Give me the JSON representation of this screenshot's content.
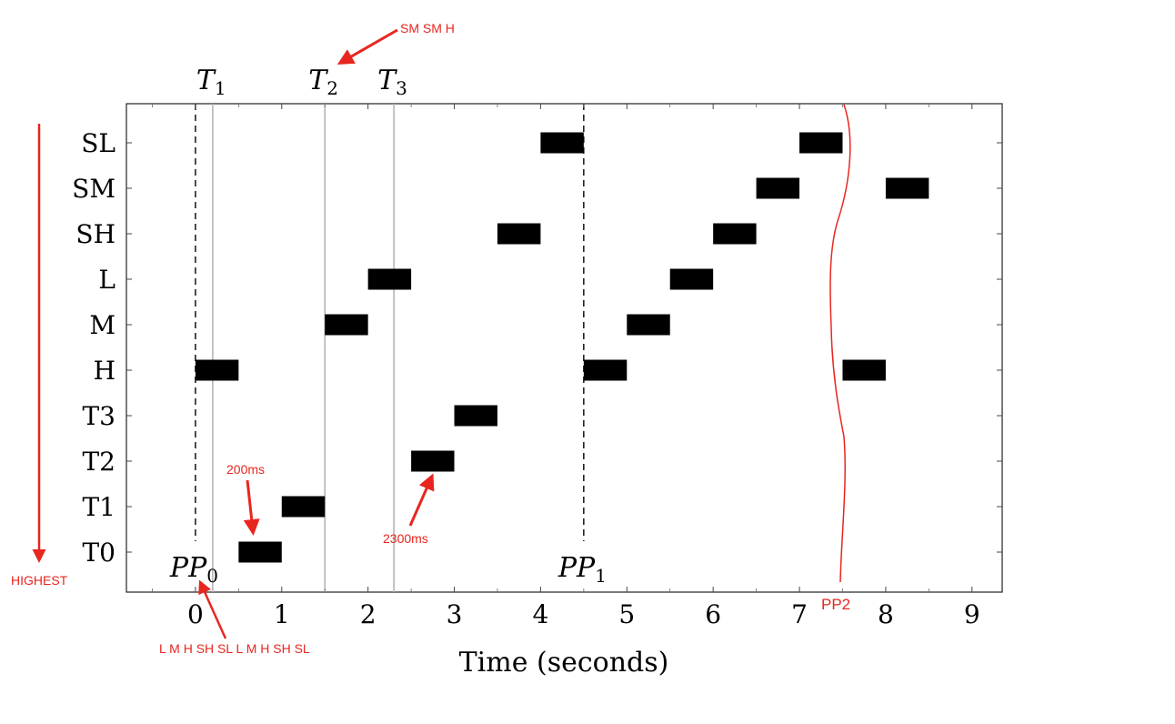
{
  "chart_data": {
    "type": "gantt",
    "xlabel": "Time (seconds)",
    "x_ticks": [
      0,
      1,
      2,
      3,
      4,
      5,
      6,
      7,
      8,
      9
    ],
    "xlim": [
      -0.8,
      9.35
    ],
    "categories": [
      "T0",
      "T1",
      "T2",
      "T3",
      "H",
      "M",
      "L",
      "SH",
      "SM",
      "SL"
    ],
    "bars": [
      {
        "row": "H",
        "start": 0.0,
        "end": 0.5
      },
      {
        "row": "T0",
        "start": 0.5,
        "end": 1.0
      },
      {
        "row": "T1",
        "start": 1.0,
        "end": 1.5
      },
      {
        "row": "M",
        "start": 1.5,
        "end": 2.0
      },
      {
        "row": "L",
        "start": 2.0,
        "end": 2.5
      },
      {
        "row": "T2",
        "start": 2.5,
        "end": 3.0
      },
      {
        "row": "T3",
        "start": 3.0,
        "end": 3.5
      },
      {
        "row": "SH",
        "start": 3.5,
        "end": 4.0
      },
      {
        "row": "SL",
        "start": 4.0,
        "end": 4.5
      },
      {
        "row": "H",
        "start": 4.5,
        "end": 5.0
      },
      {
        "row": "M",
        "start": 5.0,
        "end": 5.5
      },
      {
        "row": "L",
        "start": 5.5,
        "end": 6.0
      },
      {
        "row": "SH",
        "start": 6.0,
        "end": 6.5
      },
      {
        "row": "SM",
        "start": 6.5,
        "end": 7.0
      },
      {
        "row": "SL",
        "start": 7.0,
        "end": 7.5
      },
      {
        "row": "H",
        "start": 7.5,
        "end": 8.0
      },
      {
        "row": "SM",
        "start": 8.0,
        "end": 8.5
      }
    ],
    "dashed_lines": [
      {
        "x": 0.0,
        "label": "PP",
        "sub": "0"
      },
      {
        "x": 4.5,
        "label": "PP",
        "sub": "1"
      }
    ],
    "gray_lines": [
      {
        "x": 0.2,
        "label": "T",
        "sub": "1"
      },
      {
        "x": 1.5,
        "label": "T",
        "sub": "2"
      },
      {
        "x": 2.3,
        "label": "T",
        "sub": "3"
      }
    ],
    "grid": false
  },
  "annotations": {
    "color": "#e8261f",
    "top_note": "SM SM H",
    "left_note": "HIGHEST",
    "note_200": "200ms",
    "note_2300": "2300ms",
    "bottom_note": "L M H SH SL L M H SH SL",
    "pp2": "PP2"
  }
}
